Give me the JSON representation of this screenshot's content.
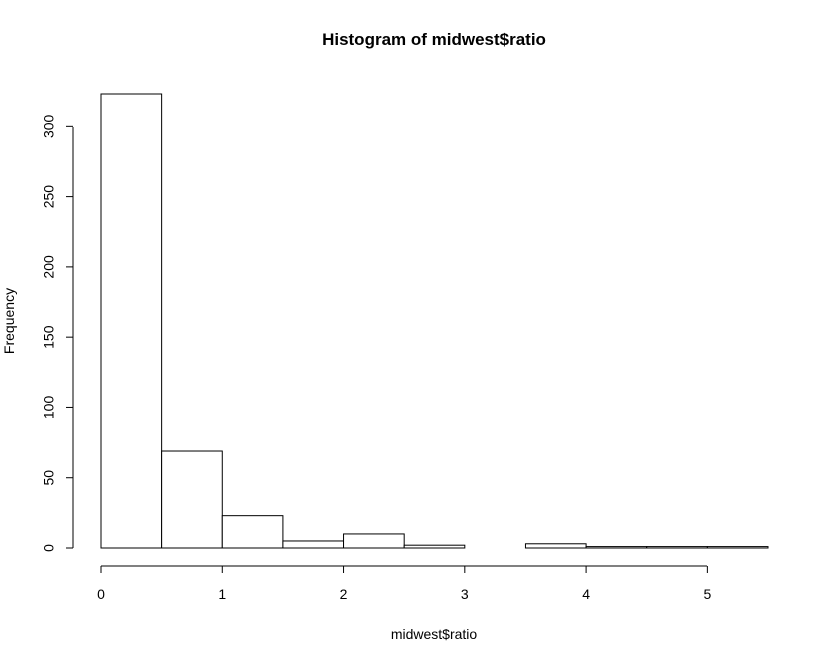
{
  "chart_data": {
    "type": "bar",
    "title": "Histogram of midwest$ratio",
    "xlabel": "midwest$ratio",
    "ylabel": "Frequency",
    "bin_edges": [
      0,
      0.5,
      1,
      1.5,
      2,
      2.5,
      3,
      3.5,
      4,
      4.5,
      5,
      5.5
    ],
    "values": [
      323,
      69,
      23,
      5,
      10,
      2,
      0,
      3,
      1,
      1,
      1
    ],
    "xlim": [
      0,
      5.5
    ],
    "ylim": [
      0,
      323
    ],
    "x_ticks": [
      "0",
      "1",
      "2",
      "3",
      "4",
      "5"
    ],
    "y_ticks": [
      "0",
      "50",
      "100",
      "150",
      "200",
      "250",
      "300"
    ],
    "grid": false,
    "legend": "none"
  }
}
